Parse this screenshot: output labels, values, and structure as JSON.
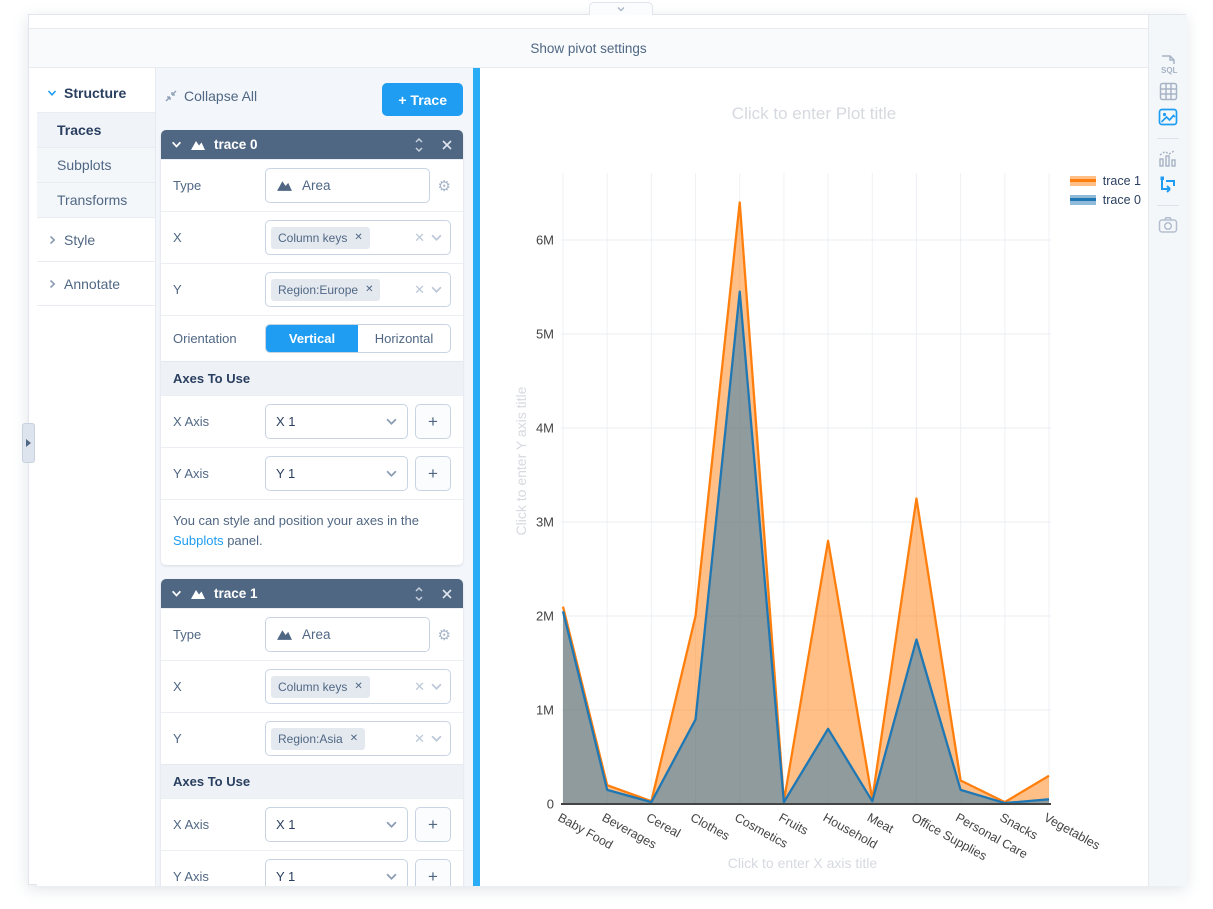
{
  "top_bar": {
    "label": "Show pivot settings"
  },
  "sidebar": {
    "items": [
      {
        "label": "Structure",
        "state": "expanded",
        "active": false
      },
      {
        "label": "Traces",
        "active": true
      },
      {
        "label": "Subplots",
        "active": false
      },
      {
        "label": "Transforms",
        "active": false
      },
      {
        "label": "Style",
        "state": "collapsed",
        "active": false
      },
      {
        "label": "Annotate",
        "state": "collapsed",
        "active": false
      }
    ]
  },
  "panel": {
    "collapse_all_label": "Collapse All",
    "add_trace_label": "+ Trace",
    "labels": {
      "type": "Type",
      "x": "X",
      "y": "Y",
      "orientation": "Orientation",
      "axes_header": "Axes To Use",
      "x_axis": "X Axis",
      "y_axis": "Y Axis"
    },
    "traces": [
      {
        "title": "trace 0",
        "type": "Area",
        "x_tokens": [
          "Column keys"
        ],
        "y_tokens": [
          "Region:Europe"
        ],
        "orientation_options": [
          "Vertical",
          "Horizontal"
        ],
        "orientation_selected": "Vertical",
        "x_axis_value": "X 1",
        "y_axis_value": "Y 1",
        "note": {
          "prefix": "You can style and position your axes in the ",
          "link": "Subplots",
          "suffix": " panel."
        }
      },
      {
        "title": "trace 1",
        "type": "Area",
        "x_tokens": [
          "Column keys"
        ],
        "y_tokens": [
          "Region:Asia"
        ],
        "x_axis_value": "X 1",
        "y_axis_value": "Y 1"
      }
    ]
  },
  "toolbar": {
    "sql_label": "SQL",
    "active_view": "image"
  },
  "colors": {
    "accent": "#1e9df2",
    "fold_header": "#506784"
  },
  "chart_data": {
    "type": "area",
    "title_placeholder": "Click to enter Plot title",
    "xlabel_placeholder": "Click to enter X axis title",
    "ylabel_placeholder": "Click to enter Y axis title",
    "categories": [
      "Baby Food",
      "Beverages",
      "Cereal",
      "Clothes",
      "Cosmetics",
      "Fruits",
      "Household",
      "Meat",
      "Office Supplies",
      "Personal Care",
      "Snacks",
      "Vegetables"
    ],
    "unit": "M",
    "series": [
      {
        "name": "trace 0",
        "field": "Region:Europe",
        "color": "#1f77b4",
        "fill": "rgba(31,119,180,0.5)",
        "values": [
          2.05,
          0.15,
          0.02,
          0.9,
          5.45,
          0.02,
          0.8,
          0.03,
          1.75,
          0.15,
          0.01,
          0.05
        ]
      },
      {
        "name": "trace 1",
        "field": "Region:Asia",
        "color": "#ff7f0e",
        "fill": "rgba(255,127,14,0.5)",
        "values": [
          2.1,
          0.2,
          0.03,
          2.0,
          6.4,
          0.03,
          2.8,
          0.05,
          3.25,
          0.25,
          0.02,
          0.3
        ]
      }
    ],
    "yticks": [
      "0",
      "1M",
      "2M",
      "3M",
      "4M",
      "5M",
      "6M"
    ],
    "ylim": [
      0,
      6.7
    ],
    "grid": true,
    "legend_position": "top-right",
    "legend_order": [
      "trace 1",
      "trace 0"
    ]
  }
}
